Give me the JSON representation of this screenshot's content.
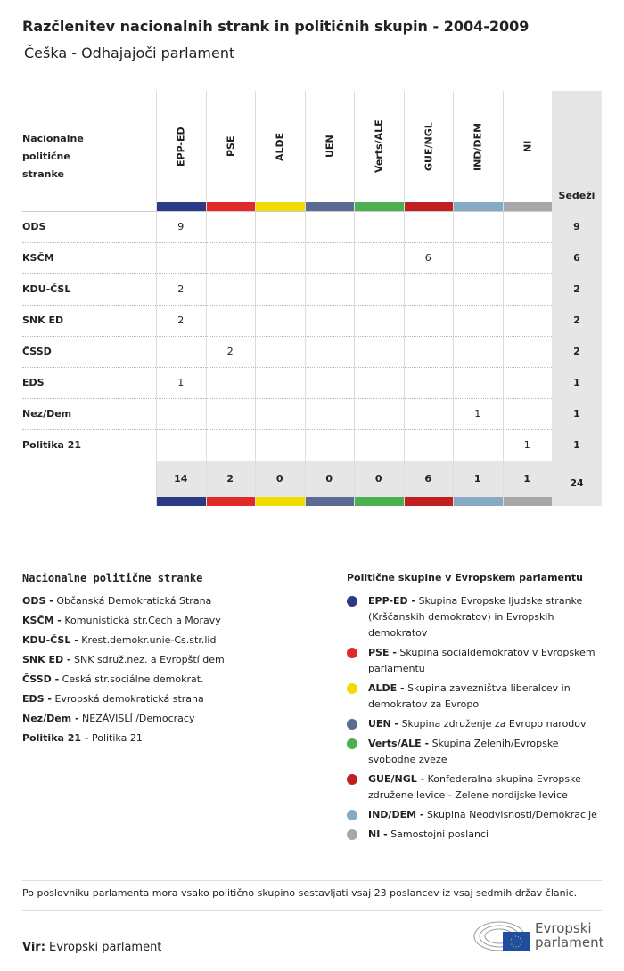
{
  "header": {
    "title": "Razčlenitev nacionalnih strank in političnih skupin - 2004-2009",
    "subtitle": "Češka - Odhajajoči parlament"
  },
  "chart_data": {
    "type": "table",
    "row_header": "Nacionalne politične stranke",
    "total_header": "Sedeži",
    "groups": [
      {
        "name": "EPP-ED",
        "color": "#2b3a85",
        "total": "14"
      },
      {
        "name": "PSE",
        "color": "#e02a2a",
        "total": "2"
      },
      {
        "name": "ALDE",
        "color": "#f0dc00",
        "total": "0"
      },
      {
        "name": "UEN",
        "color": "#5a6a92",
        "total": "0"
      },
      {
        "name": "Verts/ALE",
        "color": "#4caf50",
        "total": "0"
      },
      {
        "name": "GUE/NGL",
        "color": "#c0201f",
        "total": "6"
      },
      {
        "name": "IND/DEM",
        "color": "#86a9c4",
        "total": "1"
      },
      {
        "name": "NI",
        "color": "#a7a7a7",
        "total": "1"
      }
    ],
    "rows": [
      {
        "party": "ODS",
        "values": [
          "9",
          "",
          "",
          "",
          "",
          "",
          "",
          ""
        ],
        "total": "9"
      },
      {
        "party": "KSČM",
        "values": [
          "",
          "",
          "",
          "",
          "",
          "6",
          "",
          ""
        ],
        "total": "6"
      },
      {
        "party": "KDU-ČSL",
        "values": [
          "2",
          "",
          "",
          "",
          "",
          "",
          "",
          ""
        ],
        "total": "2"
      },
      {
        "party": "SNK ED",
        "values": [
          "2",
          "",
          "",
          "",
          "",
          "",
          "",
          ""
        ],
        "total": "2"
      },
      {
        "party": "ČSSD",
        "values": [
          "",
          "2",
          "",
          "",
          "",
          "",
          "",
          ""
        ],
        "total": "2"
      },
      {
        "party": "EDS",
        "values": [
          "1",
          "",
          "",
          "",
          "",
          "",
          "",
          ""
        ],
        "total": "1"
      },
      {
        "party": "Nez/Dem",
        "values": [
          "",
          "",
          "",
          "",
          "",
          "",
          "1",
          ""
        ],
        "total": "1"
      },
      {
        "party": "Politika 21",
        "values": [
          "",
          "",
          "",
          "",
          "",
          "",
          "",
          "1"
        ],
        "total": "1"
      }
    ],
    "grand_total": "24"
  },
  "legend_parties": {
    "title": "Nacionalne politične stranke",
    "items": [
      {
        "abbr": "ODS -",
        "name": "Občanská Demokratická Strana"
      },
      {
        "abbr": "KSČM -",
        "name": "Komunistická str.Cech a Moravy"
      },
      {
        "abbr": "KDU-ČSL -",
        "name": "Krest.demokr.unie-Cs.str.lid"
      },
      {
        "abbr": "SNK ED -",
        "name": "SNK sdruž.nez. a Evropští dem"
      },
      {
        "abbr": "ČSSD -",
        "name": "Ceská str.sociálne demokrat."
      },
      {
        "abbr": "EDS -",
        "name": "Evropská demokratická strana"
      },
      {
        "abbr": "Nez/Dem -",
        "name": "NEZÁVISLÍ /Democracy"
      },
      {
        "abbr": "Politika 21 -",
        "name": "Politika 21"
      }
    ]
  },
  "legend_groups": {
    "title": "Politične skupine v Evropskem parlamentu",
    "items": [
      {
        "abbr": "EPP-ED -",
        "name": "Skupina Evropske ljudske stranke (Krščanskih demokratov) in Evropskih demokratov",
        "color": "#2b3a85"
      },
      {
        "abbr": "PSE -",
        "name": "Skupina socialdemokratov v Evropskem parlamentu",
        "color": "#e02a2a"
      },
      {
        "abbr": "ALDE -",
        "name": "Skupina zavezništva liberalcev in demokratov za Evropo",
        "color": "#f0dc00"
      },
      {
        "abbr": "UEN -",
        "name": "Skupina združenje za Evropo narodov",
        "color": "#5a6a92"
      },
      {
        "abbr": "Verts/ALE -",
        "name": "Skupina Zelenih/Evropske svobodne zveze",
        "color": "#4caf50"
      },
      {
        "abbr": "GUE/NGL -",
        "name": "Konfederalna skupina Evropske združene levice - Zelene nordijske levice",
        "color": "#c0201f"
      },
      {
        "abbr": "IND/DEM -",
        "name": "Skupina Neodvisnosti/Demokracije",
        "color": "#86a9c4"
      },
      {
        "abbr": "NI -",
        "name": "Samostojni poslanci",
        "color": "#a7a7a7"
      }
    ]
  },
  "footer": {
    "note": "Po poslovniku parlamenta mora vsako politično skupino sestavljati vsaj 23 poslancev iz vsaj sedmih držav članic.",
    "source_label": "Vir:",
    "source": "Evropski parlament",
    "logo_text": "Evropski parlament"
  }
}
